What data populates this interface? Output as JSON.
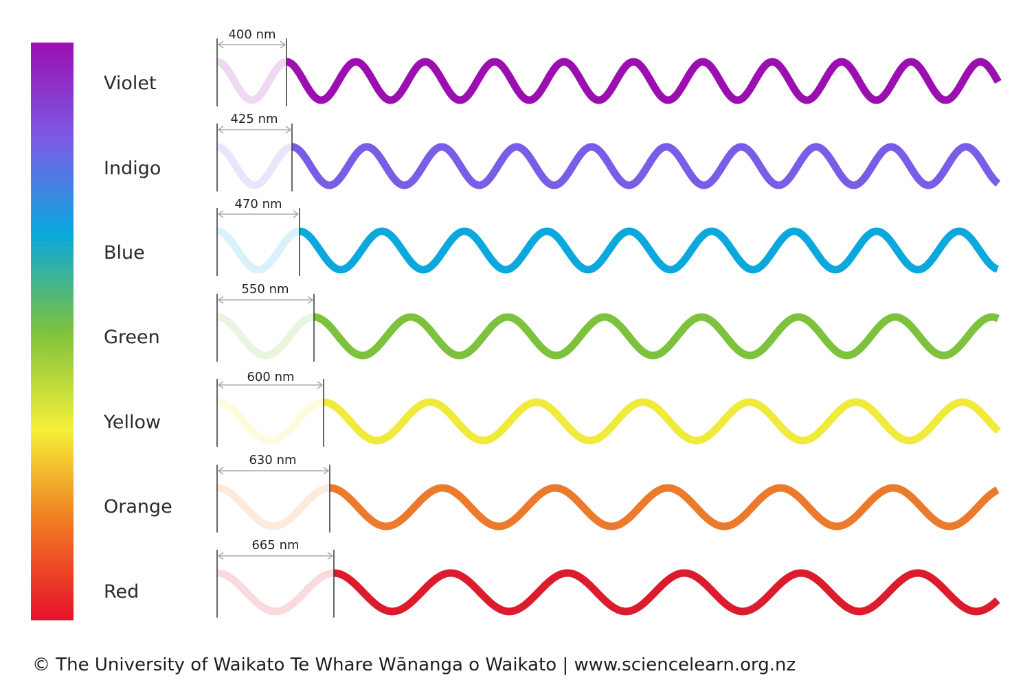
{
  "rows": [
    {
      "name": "Violet",
      "wavelength_label": "400 nm",
      "wavelength_nm": 400,
      "color": "#9b0fb0"
    },
    {
      "name": "Indigo",
      "wavelength_label": "425 nm",
      "wavelength_nm": 425,
      "color": "#7a5de6"
    },
    {
      "name": "Blue",
      "wavelength_label": "470 nm",
      "wavelength_nm": 470,
      "color": "#0aa8dd"
    },
    {
      "name": "Green",
      "wavelength_label": "550 nm",
      "wavelength_nm": 550,
      "color": "#7dc23d"
    },
    {
      "name": "Yellow",
      "wavelength_label": "600 nm",
      "wavelength_nm": 600,
      "color": "#f0ea3a"
    },
    {
      "name": "Orange",
      "wavelength_label": "630 nm",
      "wavelength_nm": 630,
      "color": "#ec7a2c"
    },
    {
      "name": "Red",
      "wavelength_label": "665 nm",
      "wavelength_nm": 665,
      "color": "#dc1c2c"
    }
  ],
  "spectrum_colors": [
    "#9b0fb0",
    "#7a5de6",
    "#0aa8dd",
    "#7dc23d",
    "#f5f03a",
    "#f07a22",
    "#e8102c"
  ],
  "credit": "© The University of Waikato Te Whare Wānanga o Waikato | www.sciencelearn.org.nz"
}
